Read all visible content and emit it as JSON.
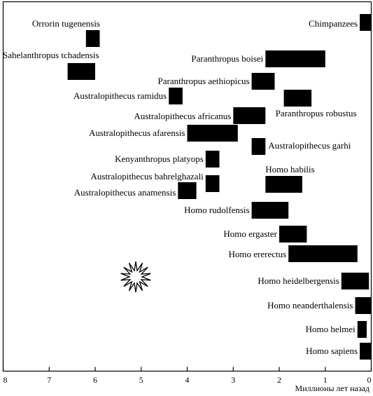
{
  "chart_data": {
    "type": "bar",
    "orientation": "horizontal-range",
    "xlabel": "Миллионы лет назад",
    "x_reversed": true,
    "xlim": [
      8,
      0
    ],
    "xticks": [
      "8",
      "7",
      "6",
      "5",
      "4",
      "3",
      "2",
      "1",
      "0"
    ],
    "grid": false,
    "legend": "none",
    "bar_color": "#000000",
    "series": [
      {
        "name": "Orrorin tugenensis",
        "start": 6.2,
        "end": 5.9,
        "label_side": "above"
      },
      {
        "name": "Sahelanthropus tchadensis",
        "start": 6.6,
        "end": 6.0,
        "label_side": "above"
      },
      {
        "name": "Australopithecus ramidus",
        "start": 4.4,
        "end": 4.1,
        "label_side": "left"
      },
      {
        "name": "Australopithecus afarensis",
        "start": 4.0,
        "end": 2.9,
        "label_side": "left"
      },
      {
        "name": "Kenyanthropus platyops",
        "start": 3.6,
        "end": 3.3,
        "label_side": "left"
      },
      {
        "name": "Australopithecus bahrelghazali",
        "start": 3.6,
        "end": 3.3,
        "label_side": "left"
      },
      {
        "name": "Australopithecus anamensis",
        "start": 4.2,
        "end": 3.8,
        "label_side": "left"
      },
      {
        "name": "Chimpanzees",
        "start": 0.25,
        "end": 0.0,
        "label_side": "left"
      },
      {
        "name": "Paranthropus boisei",
        "start": 2.3,
        "end": 1.0,
        "label_side": "left"
      },
      {
        "name": "Paranthropus aethiopicus",
        "start": 2.6,
        "end": 2.1,
        "label_side": "left"
      },
      {
        "name": "Paranthropus robustus",
        "start": 1.9,
        "end": 1.3,
        "label_side": "below"
      },
      {
        "name": "Australopithecus africanus",
        "start": 3.0,
        "end": 2.3,
        "label_side": "left"
      },
      {
        "name": "Australopithecus garhi",
        "start": 2.6,
        "end": 2.3,
        "label_side": "right"
      },
      {
        "name": "Homo habilis",
        "start": 2.3,
        "end": 1.5,
        "label_side": "above"
      },
      {
        "name": "Homo rudolfensis",
        "start": 2.6,
        "end": 1.8,
        "label_side": "left"
      },
      {
        "name": "Homo ergaster",
        "start": 2.0,
        "end": 1.4,
        "label_side": "left"
      },
      {
        "name": "Homo ererectus",
        "start": 1.8,
        "end": 0.3,
        "label_side": "left"
      },
      {
        "name": "Homo heidelbergensis",
        "start": 0.65,
        "end": 0.05,
        "label_side": "left"
      },
      {
        "name": "Homo neanderthalensis",
        "start": 0.35,
        "end": 0.0,
        "label_side": "left"
      },
      {
        "name": "Homo helmei",
        "start": 0.3,
        "end": 0.1,
        "label_side": "left"
      },
      {
        "name": "Homo sapiens",
        "start": 0.25,
        "end": 0.0,
        "label_side": "left"
      }
    ]
  }
}
